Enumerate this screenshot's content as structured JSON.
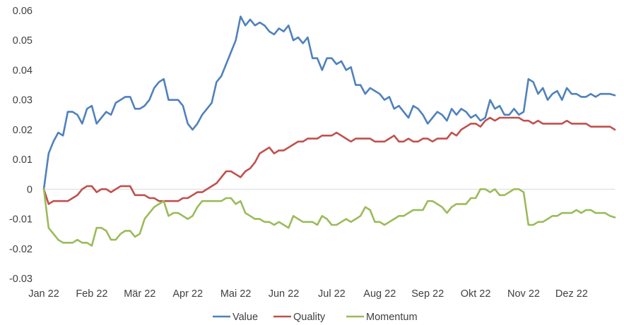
{
  "chart_data": {
    "type": "line",
    "title": "",
    "xlabel": "",
    "ylabel": "",
    "ylim": [
      -0.03,
      0.06
    ],
    "yticks": [
      -0.03,
      -0.02,
      -0.01,
      0,
      0.01,
      0.02,
      0.03,
      0.04,
      0.05,
      0.06
    ],
    "ytick_labels": [
      "-0.03",
      "-0.02",
      "-0.01",
      "0",
      "0.01",
      "0.02",
      "0.03",
      "0.04",
      "0.05",
      "0.06"
    ],
    "xlim": [
      0,
      11.9
    ],
    "xticks": [
      0,
      1,
      2,
      3,
      4,
      5,
      6,
      7,
      8,
      9,
      10,
      11
    ],
    "xtick_labels": [
      "Jan 22",
      "Feb 22",
      "Mär 22",
      "Apr 22",
      "Mai 22",
      "Jun 22",
      "Jul 22",
      "Aug 22",
      "Sep 22",
      "Okt 22",
      "Nov 22",
      "Dez 22"
    ],
    "grid": false,
    "legend": "bottom",
    "x": [
      0,
      0.1,
      0.2,
      0.3,
      0.4,
      0.5,
      0.6,
      0.7,
      0.8,
      0.9,
      1.0,
      1.1,
      1.2,
      1.3,
      1.4,
      1.5,
      1.6,
      1.7,
      1.8,
      1.9,
      2.0,
      2.1,
      2.2,
      2.3,
      2.4,
      2.5,
      2.6,
      2.7,
      2.8,
      2.9,
      3.0,
      3.1,
      3.2,
      3.3,
      3.4,
      3.5,
      3.6,
      3.7,
      3.8,
      3.9,
      4.0,
      4.1,
      4.2,
      4.3,
      4.4,
      4.5,
      4.6,
      4.7,
      4.8,
      4.9,
      5.0,
      5.1,
      5.2,
      5.3,
      5.4,
      5.5,
      5.6,
      5.7,
      5.8,
      5.9,
      6.0,
      6.1,
      6.2,
      6.3,
      6.4,
      6.5,
      6.6,
      6.7,
      6.8,
      6.9,
      7.0,
      7.1,
      7.2,
      7.3,
      7.4,
      7.5,
      7.6,
      7.7,
      7.8,
      7.9,
      8.0,
      8.1,
      8.2,
      8.3,
      8.4,
      8.5,
      8.6,
      8.7,
      8.8,
      8.9,
      9.0,
      9.1,
      9.2,
      9.3,
      9.4,
      9.5,
      9.6,
      9.7,
      9.8,
      9.9,
      10.0,
      10.1,
      10.2,
      10.3,
      10.4,
      10.5,
      10.6,
      10.7,
      10.8,
      10.9,
      11.0,
      11.1,
      11.2,
      11.3,
      11.4,
      11.5,
      11.6,
      11.7,
      11.8,
      11.9
    ],
    "series": [
      {
        "name": "Value",
        "color": "#4f81bd",
        "values": [
          0,
          0.012,
          0.016,
          0.019,
          0.018,
          0.026,
          0.026,
          0.025,
          0.022,
          0.027,
          0.028,
          0.022,
          0.024,
          0.026,
          0.025,
          0.029,
          0.03,
          0.031,
          0.031,
          0.027,
          0.027,
          0.028,
          0.03,
          0.034,
          0.036,
          0.037,
          0.03,
          0.03,
          0.03,
          0.028,
          0.022,
          0.02,
          0.022,
          0.025,
          0.027,
          0.029,
          0.036,
          0.038,
          0.042,
          0.046,
          0.05,
          0.058,
          0.055,
          0.057,
          0.055,
          0.056,
          0.055,
          0.053,
          0.052,
          0.054,
          0.053,
          0.055,
          0.05,
          0.051,
          0.049,
          0.051,
          0.044,
          0.044,
          0.04,
          0.044,
          0.044,
          0.042,
          0.043,
          0.04,
          0.041,
          0.035,
          0.035,
          0.032,
          0.034,
          0.033,
          0.032,
          0.03,
          0.031,
          0.027,
          0.028,
          0.026,
          0.024,
          0.028,
          0.027,
          0.025,
          0.022,
          0.024,
          0.026,
          0.025,
          0.023,
          0.027,
          0.025,
          0.027,
          0.026,
          0.024,
          0.025,
          0.023,
          0.024,
          0.03,
          0.027,
          0.028,
          0.025,
          0.025,
          0.027,
          0.025,
          0.026,
          0.037,
          0.036,
          0.032,
          0.034,
          0.03,
          0.032,
          0.033,
          0.03,
          0.034,
          0.032,
          0.032,
          0.031,
          0.031,
          0.032,
          0.031,
          0.032,
          0.032,
          0.032,
          0.0315
        ]
      },
      {
        "name": "Quality",
        "color": "#c0504d",
        "values": [
          0,
          -0.005,
          -0.004,
          -0.004,
          -0.004,
          -0.004,
          -0.003,
          -0.002,
          0,
          0.001,
          0.001,
          -0.001,
          0,
          0,
          -0.001,
          0,
          0.001,
          0.001,
          0.001,
          -0.002,
          -0.002,
          -0.002,
          -0.003,
          -0.003,
          -0.004,
          -0.004,
          -0.004,
          -0.004,
          -0.004,
          -0.003,
          -0.003,
          -0.002,
          -0.001,
          -0.001,
          0,
          0.001,
          0.002,
          0.004,
          0.006,
          0.006,
          0.005,
          0.004,
          0.006,
          0.007,
          0.009,
          0.012,
          0.013,
          0.014,
          0.012,
          0.013,
          0.013,
          0.014,
          0.015,
          0.016,
          0.016,
          0.017,
          0.017,
          0.017,
          0.018,
          0.018,
          0.018,
          0.019,
          0.018,
          0.017,
          0.016,
          0.017,
          0.017,
          0.017,
          0.017,
          0.016,
          0.016,
          0.016,
          0.017,
          0.018,
          0.016,
          0.016,
          0.017,
          0.016,
          0.016,
          0.017,
          0.017,
          0.016,
          0.017,
          0.017,
          0.017,
          0.019,
          0.018,
          0.02,
          0.021,
          0.022,
          0.022,
          0.021,
          0.023,
          0.024,
          0.023,
          0.024,
          0.024,
          0.024,
          0.024,
          0.024,
          0.023,
          0.023,
          0.022,
          0.023,
          0.022,
          0.022,
          0.022,
          0.022,
          0.022,
          0.023,
          0.022,
          0.022,
          0.022,
          0.022,
          0.021,
          0.021,
          0.021,
          0.021,
          0.021,
          0.02
        ]
      },
      {
        "name": "Momentum",
        "color": "#9bbb59",
        "values": [
          0,
          -0.013,
          -0.015,
          -0.017,
          -0.018,
          -0.018,
          -0.018,
          -0.017,
          -0.018,
          -0.018,
          -0.019,
          -0.013,
          -0.013,
          -0.014,
          -0.017,
          -0.017,
          -0.015,
          -0.014,
          -0.014,
          -0.016,
          -0.015,
          -0.01,
          -0.008,
          -0.006,
          -0.005,
          -0.004,
          -0.009,
          -0.008,
          -0.008,
          -0.009,
          -0.01,
          -0.009,
          -0.006,
          -0.004,
          -0.004,
          -0.004,
          -0.004,
          -0.004,
          -0.003,
          -0.003,
          -0.005,
          -0.004,
          -0.008,
          -0.009,
          -0.01,
          -0.01,
          -0.011,
          -0.011,
          -0.012,
          -0.011,
          -0.012,
          -0.013,
          -0.009,
          -0.01,
          -0.011,
          -0.011,
          -0.011,
          -0.012,
          -0.009,
          -0.01,
          -0.012,
          -0.012,
          -0.011,
          -0.01,
          -0.011,
          -0.01,
          -0.009,
          -0.006,
          -0.007,
          -0.011,
          -0.011,
          -0.012,
          -0.011,
          -0.01,
          -0.009,
          -0.009,
          -0.008,
          -0.007,
          -0.007,
          -0.007,
          -0.004,
          -0.004,
          -0.005,
          -0.006,
          -0.008,
          -0.006,
          -0.005,
          -0.005,
          -0.005,
          -0.003,
          -0.003,
          0,
          0,
          -0.001,
          0,
          -0.002,
          -0.002,
          -0.001,
          0,
          0,
          -0.001,
          -0.012,
          -0.012,
          -0.011,
          -0.011,
          -0.01,
          -0.009,
          -0.009,
          -0.008,
          -0.008,
          -0.008,
          -0.007,
          -0.008,
          -0.007,
          -0.007,
          -0.008,
          -0.008,
          -0.008,
          -0.009,
          -0.0095
        ]
      }
    ]
  }
}
